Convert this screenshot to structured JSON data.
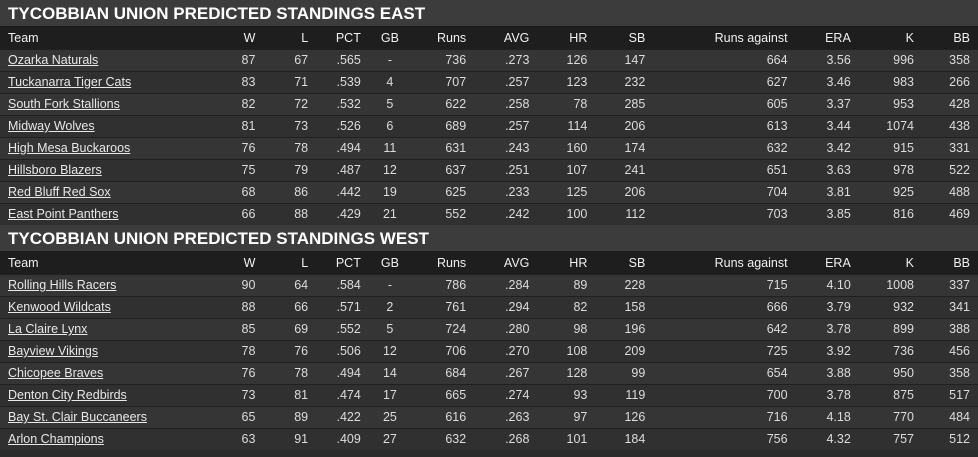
{
  "sections": [
    {
      "title": "TYCOBBIAN UNION PREDICTED STANDINGS EAST",
      "columns": [
        "Team",
        "W",
        "L",
        "PCT",
        "GB",
        "Runs",
        "AVG",
        "HR",
        "SB",
        "Runs against",
        "ERA",
        "K",
        "BB"
      ],
      "rows": [
        [
          "Ozarka Naturals",
          "87",
          "67",
          ".565",
          "-",
          "736",
          ".273",
          "126",
          "147",
          "664",
          "3.56",
          "996",
          "358"
        ],
        [
          "Tuckanarra Tiger Cats",
          "83",
          "71",
          ".539",
          "4",
          "707",
          ".257",
          "123",
          "232",
          "627",
          "3.46",
          "983",
          "266"
        ],
        [
          "South Fork Stallions",
          "82",
          "72",
          ".532",
          "5",
          "622",
          ".258",
          "78",
          "285",
          "605",
          "3.37",
          "953",
          "428"
        ],
        [
          "Midway Wolves",
          "81",
          "73",
          ".526",
          "6",
          "689",
          ".257",
          "114",
          "206",
          "613",
          "3.44",
          "1074",
          "438"
        ],
        [
          "High Mesa Buckaroos",
          "76",
          "78",
          ".494",
          "11",
          "631",
          ".243",
          "160",
          "174",
          "632",
          "3.42",
          "915",
          "331"
        ],
        [
          "Hillsboro Blazers",
          "75",
          "79",
          ".487",
          "12",
          "637",
          ".251",
          "107",
          "241",
          "651",
          "3.63",
          "978",
          "522"
        ],
        [
          "Red Bluff Red Sox",
          "68",
          "86",
          ".442",
          "19",
          "625",
          ".233",
          "125",
          "206",
          "704",
          "3.81",
          "925",
          "488"
        ],
        [
          "East Point Panthers",
          "66",
          "88",
          ".429",
          "21",
          "552",
          ".242",
          "100",
          "112",
          "703",
          "3.85",
          "816",
          "469"
        ]
      ]
    },
    {
      "title": "TYCOBBIAN UNION PREDICTED STANDINGS WEST",
      "columns": [
        "Team",
        "W",
        "L",
        "PCT",
        "GB",
        "Runs",
        "AVG",
        "HR",
        "SB",
        "Runs against",
        "ERA",
        "K",
        "BB"
      ],
      "rows": [
        [
          "Rolling Hills Racers",
          "90",
          "64",
          ".584",
          "-",
          "786",
          ".284",
          "89",
          "228",
          "715",
          "4.10",
          "1008",
          "337"
        ],
        [
          "Kenwood Wildcats",
          "88",
          "66",
          ".571",
          "2",
          "761",
          ".294",
          "82",
          "158",
          "666",
          "3.79",
          "932",
          "341"
        ],
        [
          "La Claire Lynx",
          "85",
          "69",
          ".552",
          "5",
          "724",
          ".280",
          "98",
          "196",
          "642",
          "3.78",
          "899",
          "388"
        ],
        [
          "Bayview Vikings",
          "78",
          "76",
          ".506",
          "12",
          "706",
          ".270",
          "108",
          "209",
          "725",
          "3.92",
          "736",
          "456"
        ],
        [
          "Chicopee Braves",
          "76",
          "78",
          ".494",
          "14",
          "684",
          ".267",
          "128",
          "99",
          "654",
          "3.88",
          "950",
          "358"
        ],
        [
          "Denton City Redbirds",
          "73",
          "81",
          ".474",
          "17",
          "665",
          ".274",
          "93",
          "119",
          "700",
          "3.78",
          "875",
          "517"
        ],
        [
          "Bay St. Clair Buccaneers",
          "65",
          "89",
          ".422",
          "25",
          "616",
          ".263",
          "97",
          "126",
          "716",
          "4.18",
          "770",
          "484"
        ],
        [
          "Arlon Champions",
          "63",
          "91",
          ".409",
          "27",
          "632",
          ".268",
          "101",
          "184",
          "756",
          "4.32",
          "757",
          "512"
        ]
      ]
    }
  ]
}
